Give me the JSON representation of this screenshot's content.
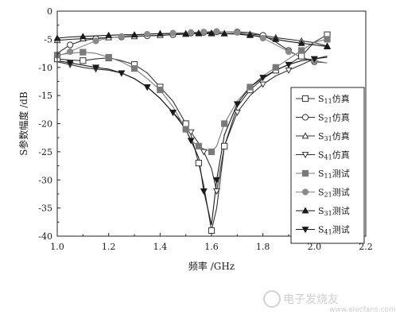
{
  "chart_data": {
    "type": "line",
    "title": "",
    "xlabel": "频率 /GHz",
    "ylabel": "S参数幅度 /dB",
    "xlim": [
      1.0,
      2.2
    ],
    "ylim": [
      -40,
      0
    ],
    "x_ticks": [
      "1.0",
      "1.2",
      "1.4",
      "1.6",
      "1.8",
      "2.0",
      "2.2"
    ],
    "y_ticks": [
      "0",
      "-5",
      "-10",
      "-15",
      "-20",
      "-25",
      "-30",
      "-35",
      "-40"
    ],
    "legend_position": "right",
    "grid": false,
    "x": [
      1.0,
      1.05,
      1.1,
      1.15,
      1.2,
      1.25,
      1.3,
      1.35,
      1.4,
      1.45,
      1.5,
      1.52,
      1.55,
      1.57,
      1.6,
      1.62,
      1.65,
      1.7,
      1.75,
      1.8,
      1.85,
      1.9,
      1.95,
      2.0,
      2.05
    ],
    "series": [
      {
        "name": "S11",
        "label_main": "S",
        "label_sub": "11",
        "label_suffix": "仿真",
        "marker": "square-open",
        "color": "#333333",
        "values": [
          -8.5,
          -8.7,
          -8.8,
          -8.5,
          -8.3,
          -8.8,
          -9.5,
          -11,
          -13.5,
          -16,
          -20,
          -22,
          -27,
          -31,
          -39,
          -35,
          -24,
          -17,
          -14,
          -12,
          -10.5,
          -9.5,
          -8,
          -5.5,
          -4.2
        ]
      },
      {
        "name": "S21",
        "label_main": "S",
        "label_sub": "21",
        "label_suffix": "仿真",
        "marker": "circle-open",
        "color": "#333333",
        "values": [
          -7.5,
          -6,
          -5.2,
          -4.9,
          -4.7,
          -4.6,
          -4.5,
          -4.4,
          -4.3,
          -4.2,
          -4.0,
          -3.9,
          -3.8,
          -3.8,
          -3.7,
          -3.7,
          -3.7,
          -3.7,
          -3.8,
          -4.3,
          -5.5,
          -7.0,
          -8.3,
          -9.0,
          -9.2
        ]
      },
      {
        "name": "S31",
        "label_main": "S",
        "label_sub": "31",
        "label_suffix": "仿真",
        "marker": "triangle-open",
        "color": "#333333",
        "values": [
          -5.2,
          -5.0,
          -4.9,
          -4.8,
          -4.7,
          -4.6,
          -4.5,
          -4.4,
          -4.3,
          -4.2,
          -4.1,
          -4.0,
          -4.0,
          -4.0,
          -4.0,
          -4.0,
          -4.0,
          -4.0,
          -4.1,
          -4.3,
          -4.7,
          -5.0,
          -5.3,
          -5.6,
          -6.2
        ]
      },
      {
        "name": "S41",
        "label_main": "S",
        "label_sub": "41",
        "label_suffix": "仿真",
        "marker": "triangle-down-open",
        "color": "#333333",
        "values": [
          -9.0,
          -9.5,
          -10,
          -10.3,
          -10.5,
          -11,
          -12,
          -13.5,
          -15.5,
          -18,
          -20.5,
          -21.5,
          -23.5,
          -25,
          -28,
          -32,
          -24,
          -18,
          -15,
          -13,
          -11.5,
          -10.5,
          -9.5,
          -8.5,
          -8.0
        ]
      },
      {
        "name": "S11测试",
        "label_main": "S",
        "label_sub": "11",
        "label_suffix": "测试",
        "marker": "square-filled",
        "color": "#7a7a7a",
        "values": [
          -7.8,
          -7.5,
          -7.3,
          -7.5,
          -8.2,
          -9.0,
          -10.2,
          -12,
          -14,
          -17,
          -21,
          -23,
          -24,
          -24.5,
          -25,
          -24,
          -20,
          -16,
          -13.5,
          -11.5,
          -10,
          -8.5,
          -7,
          -5.5,
          -5.0
        ]
      },
      {
        "name": "S21测试",
        "label_main": "S",
        "label_sub": "21",
        "label_suffix": "测试",
        "marker": "circle-filled",
        "color": "#8a8a8a",
        "values": [
          -8.0,
          -7.2,
          -6.2,
          -5.3,
          -4.8,
          -4.5,
          -4.3,
          -4.1,
          -4.0,
          -3.9,
          -3.8,
          -3.8,
          -3.7,
          -3.7,
          -3.6,
          -3.6,
          -3.7,
          -3.8,
          -4.1,
          -4.8,
          -6.0,
          -7.2,
          -8.2,
          -8.8,
          -9.2
        ]
      },
      {
        "name": "S31测试",
        "label_main": "S",
        "label_sub": "31",
        "label_suffix": "测试",
        "marker": "triangle-filled",
        "color": "#1a1a1a",
        "values": [
          -4.8,
          -4.6,
          -4.5,
          -4.4,
          -4.3,
          -4.2,
          -4.2,
          -4.1,
          -4.0,
          -4.0,
          -4.0,
          -3.9,
          -3.9,
          -3.9,
          -3.9,
          -3.9,
          -4.0,
          -4.1,
          -4.3,
          -4.6,
          -5.0,
          -5.4,
          -5.7,
          -6.0,
          -6.3
        ]
      },
      {
        "name": "S41测试",
        "label_main": "S",
        "label_sub": "41",
        "label_suffix": "测试",
        "marker": "triangle-down-filled",
        "color": "#1a1a1a",
        "values": [
          -8.8,
          -9.2,
          -9.6,
          -10,
          -10.3,
          -11,
          -12,
          -13.5,
          -15.5,
          -18,
          -21,
          -23,
          -26,
          -32,
          -38,
          -30,
          -22,
          -16.5,
          -13.5,
          -11.8,
          -10.5,
          -9.5,
          -8.8,
          -8.5,
          -8.2
        ]
      }
    ]
  },
  "watermark": {
    "text": "电子发烧友",
    "url": "www.elecfans.com"
  }
}
